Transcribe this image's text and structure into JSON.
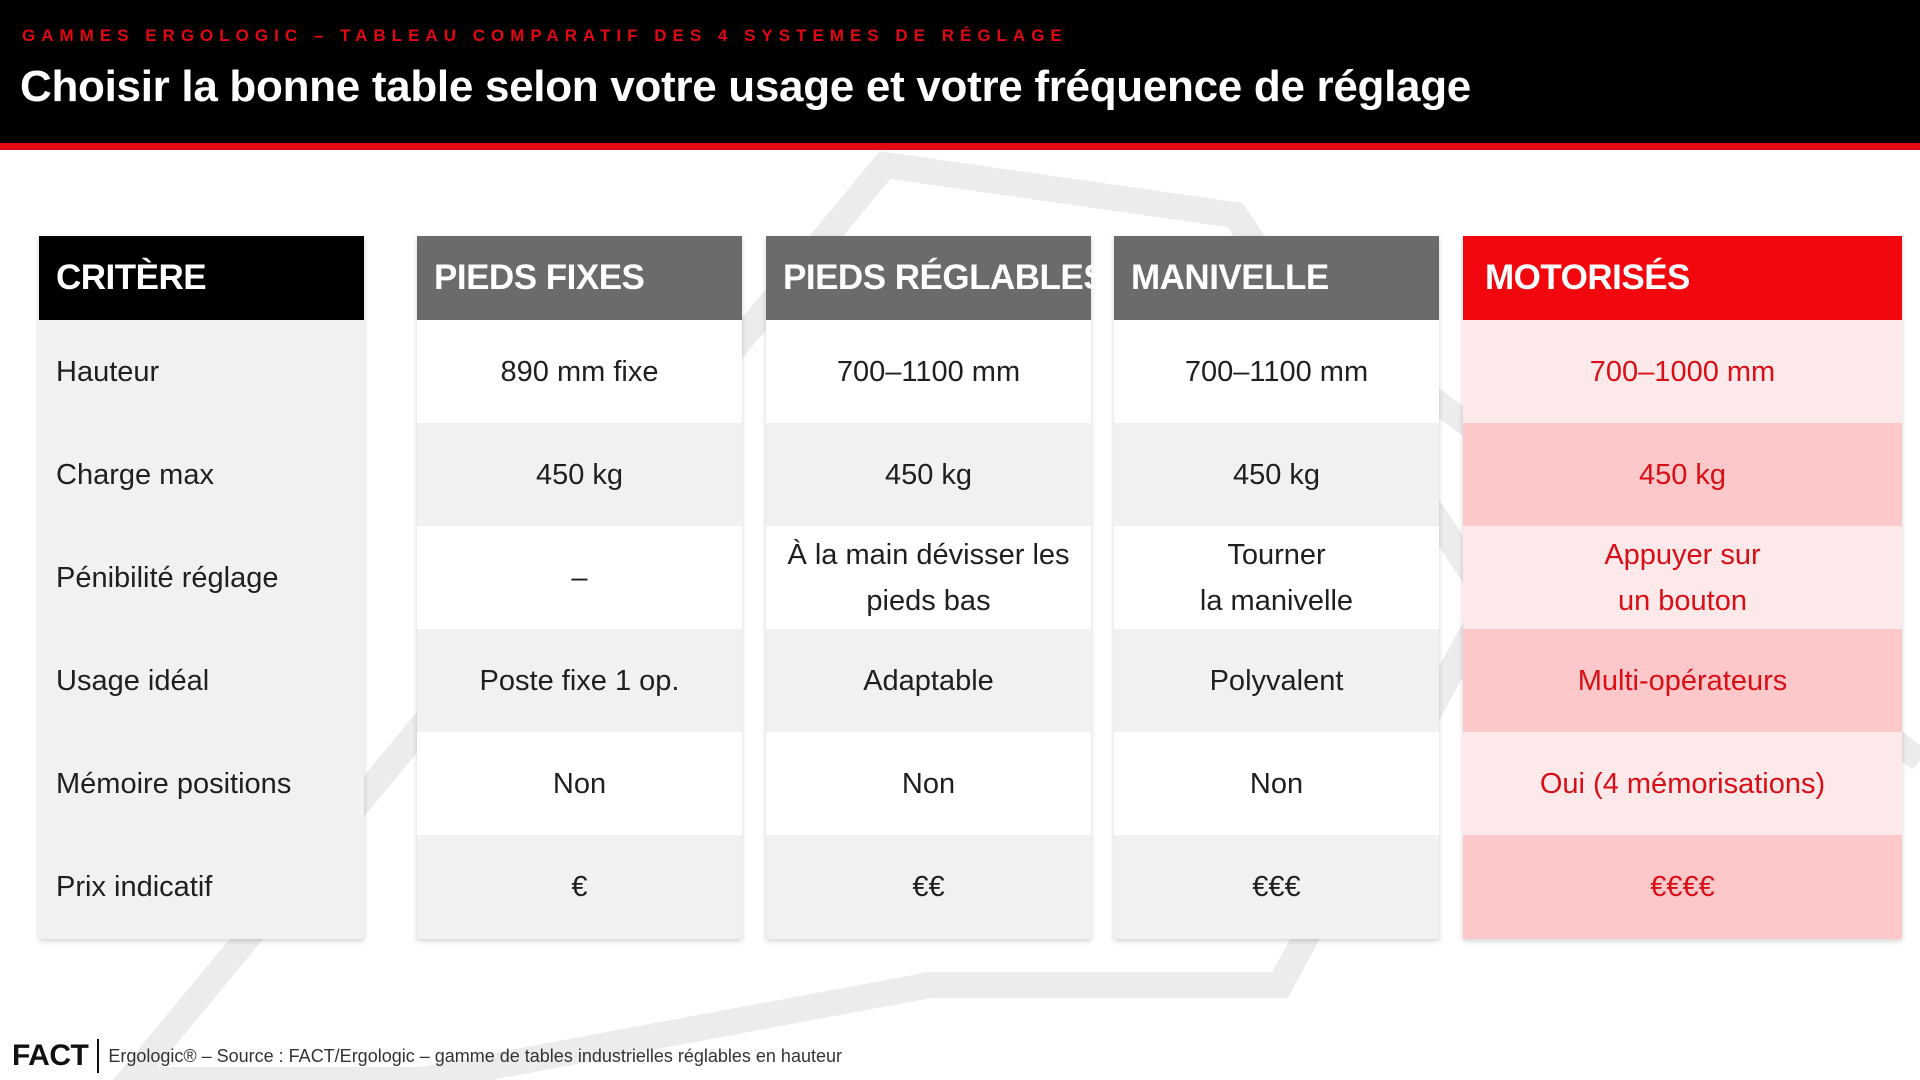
{
  "header": {
    "kicker": "GAMMES ERGOLOGIC – TABLEAU COMPARATIF DES 4 SYSTEMES DE RÉGLAGE",
    "title": "Choisir la bonne table selon votre usage et votre fréquence de réglage"
  },
  "table": {
    "criteria_header": "CRITÈRE",
    "criteria": [
      "Hauteur",
      "Charge max",
      "Pénibilité réglage",
      "Usage idéal",
      "Mémoire positions",
      "Prix indicatif"
    ],
    "columns": [
      {
        "header": "PIEDS FIXES",
        "cells": [
          "890 mm fixe",
          "450 kg",
          "–",
          "Poste fixe 1 op.",
          "Non",
          "€"
        ]
      },
      {
        "header": "PIEDS RÉGLABLES",
        "cells": [
          "700–1100 mm",
          "450 kg",
          "À la main dévisser les\npieds bas",
          "Adaptable",
          "Non",
          "€€"
        ]
      },
      {
        "header": "MANIVELLE",
        "cells": [
          "700–1100 mm",
          "450 kg",
          "Tourner\nla manivelle",
          "Polyvalent",
          "Non",
          "€€€"
        ]
      },
      {
        "header": "MOTORISÉS",
        "cells": [
          "700–1000 mm",
          "450 kg",
          "Appuyer sur\nun bouton",
          "Multi-opérateurs",
          "Oui (4 mémorisations)",
          "€€€€"
        ]
      }
    ]
  },
  "footer": {
    "logo": "FACT",
    "source": "Ergologic® – Source : FACT/Ergologic – gamme de tables industrielles réglables en hauteur"
  },
  "colors": {
    "accent_red": "#e30613",
    "header_black": "#000000",
    "column_grey": "#6b6b6b",
    "featured_red": "#f2070f"
  }
}
